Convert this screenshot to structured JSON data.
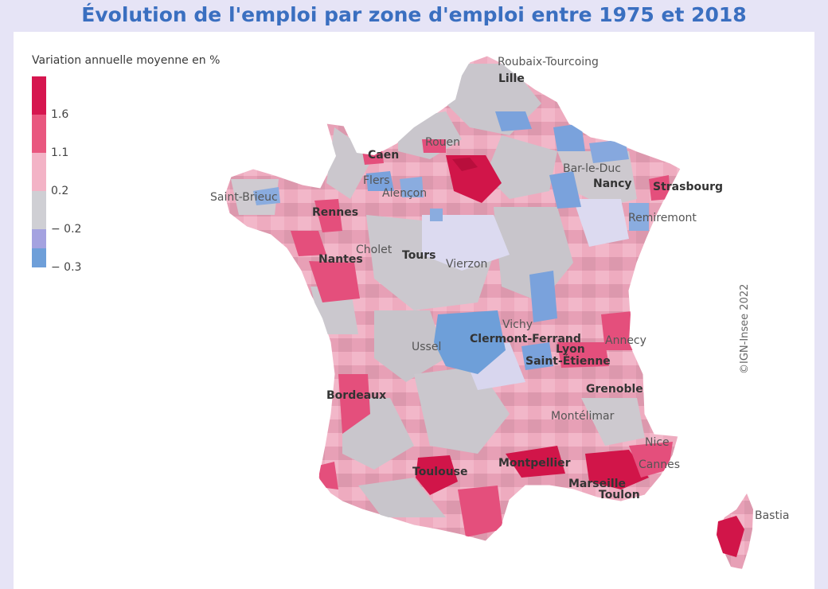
{
  "title": "Évolution de l'emploi par zone d'emploi entre 1975 et 2018",
  "legend": {
    "title": "Variation annuelle moyenne en %",
    "classes": [
      {
        "color": "#d6164f",
        "label": "1.6"
      },
      {
        "color": "#e9577f",
        "label": "1.1"
      },
      {
        "color": "#f3b3c6",
        "label": "0.2"
      },
      {
        "color": "#cfcfd4",
        "label": "− 0.2"
      },
      {
        "color": "#a4a2e0",
        "label": "− 0.3"
      },
      {
        "color": "#6e9fd9",
        "label": ""
      }
    ]
  },
  "cities": [
    {
      "name": "Roubaix-Tourcoing",
      "big": false
    },
    {
      "name": "Lille",
      "big": true
    },
    {
      "name": "Rouen",
      "big": false
    },
    {
      "name": "Caen",
      "big": true
    },
    {
      "name": "Flers",
      "big": false
    },
    {
      "name": "Alençon",
      "big": false
    },
    {
      "name": "Saint-Brieuc",
      "big": false
    },
    {
      "name": "Rennes",
      "big": true
    },
    {
      "name": "Nantes",
      "big": true
    },
    {
      "name": "Cholet",
      "big": false
    },
    {
      "name": "Tours",
      "big": true
    },
    {
      "name": "Vierzon",
      "big": false
    },
    {
      "name": "Bar-le-Duc",
      "big": false
    },
    {
      "name": "Nancy",
      "big": true
    },
    {
      "name": "Strasbourg",
      "big": true
    },
    {
      "name": "Remiremont",
      "big": false
    },
    {
      "name": "Vichy",
      "big": false
    },
    {
      "name": "Clermont-Ferrand",
      "big": true
    },
    {
      "name": "Ussel",
      "big": false
    },
    {
      "name": "Lyon",
      "big": true
    },
    {
      "name": "Annecy",
      "big": false
    },
    {
      "name": "Saint-Étienne",
      "big": true
    },
    {
      "name": "Grenoble",
      "big": true
    },
    {
      "name": "Montélimar",
      "big": false
    },
    {
      "name": "Bordeaux",
      "big": true
    },
    {
      "name": "Toulouse",
      "big": true
    },
    {
      "name": "Montpellier",
      "big": true
    },
    {
      "name": "Marseille",
      "big": true
    },
    {
      "name": "Toulon",
      "big": true
    },
    {
      "name": "Nice",
      "big": false
    },
    {
      "name": "Cannes",
      "big": false
    },
    {
      "name": "Bastia",
      "big": false
    }
  ],
  "copyright": "©IGN-Insee 2022"
}
